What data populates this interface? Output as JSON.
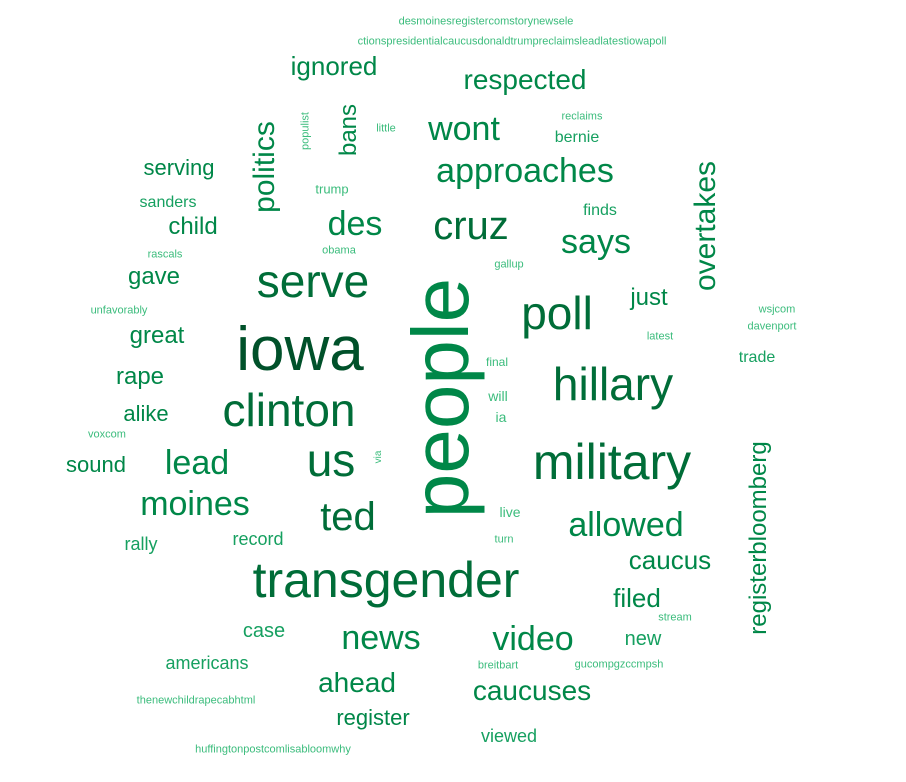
{
  "cloud": {
    "palette": {
      "largest": "#00512a",
      "large": "#006d38",
      "medium": "#008748",
      "small": "#16a060",
      "tiny": "#3bbc7c"
    },
    "words": [
      {
        "text": "people",
        "tier": "medium",
        "vertical": true
      },
      {
        "text": "iowa",
        "tier": "largest"
      },
      {
        "text": "transgender",
        "tier": "large"
      },
      {
        "text": "military",
        "tier": "large"
      },
      {
        "text": "clinton",
        "tier": "large"
      },
      {
        "text": "hillary",
        "tier": "large"
      },
      {
        "text": "poll",
        "tier": "large"
      },
      {
        "text": "us",
        "tier": "large"
      },
      {
        "text": "serve",
        "tier": "large"
      },
      {
        "text": "cruz",
        "tier": "large"
      },
      {
        "text": "ted",
        "tier": "large"
      },
      {
        "text": "moines",
        "tier": "medium"
      },
      {
        "text": "lead",
        "tier": "medium"
      },
      {
        "text": "approaches",
        "tier": "medium"
      },
      {
        "text": "says",
        "tier": "medium"
      },
      {
        "text": "allowed",
        "tier": "medium"
      },
      {
        "text": "video",
        "tier": "medium"
      },
      {
        "text": "news",
        "tier": "medium"
      },
      {
        "text": "des",
        "tier": "medium"
      },
      {
        "text": "wont",
        "tier": "medium"
      },
      {
        "text": "overtakes",
        "tier": "medium",
        "vertical": true
      },
      {
        "text": "politics",
        "tier": "medium",
        "vertical": true
      },
      {
        "text": "caucuses",
        "tier": "medium"
      },
      {
        "text": "ahead",
        "tier": "medium"
      },
      {
        "text": "registerbloomberg",
        "tier": "medium",
        "vertical": true
      },
      {
        "text": "respected",
        "tier": "medium"
      },
      {
        "text": "ignored",
        "tier": "medium"
      },
      {
        "text": "caucus",
        "tier": "medium"
      },
      {
        "text": "filed",
        "tier": "medium"
      },
      {
        "text": "just",
        "tier": "medium"
      },
      {
        "text": "great",
        "tier": "medium"
      },
      {
        "text": "gave",
        "tier": "medium"
      },
      {
        "text": "child",
        "tier": "medium"
      },
      {
        "text": "serving",
        "tier": "medium"
      },
      {
        "text": "rape",
        "tier": "medium"
      },
      {
        "text": "alike",
        "tier": "medium"
      },
      {
        "text": "sound",
        "tier": "medium"
      },
      {
        "text": "bans",
        "tier": "medium",
        "vertical": true
      },
      {
        "text": "register",
        "tier": "medium"
      },
      {
        "text": "case",
        "tier": "small"
      },
      {
        "text": "new",
        "tier": "small"
      },
      {
        "text": "viewed",
        "tier": "small"
      },
      {
        "text": "americans",
        "tier": "small"
      },
      {
        "text": "record",
        "tier": "small"
      },
      {
        "text": "rally",
        "tier": "small"
      },
      {
        "text": "trade",
        "tier": "small"
      },
      {
        "text": "sanders",
        "tier": "small"
      },
      {
        "text": "bernie",
        "tier": "small"
      },
      {
        "text": "finds",
        "tier": "small"
      },
      {
        "text": "trump",
        "tier": "tiny"
      },
      {
        "text": "live",
        "tier": "tiny"
      },
      {
        "text": "will",
        "tier": "tiny"
      },
      {
        "text": "ia",
        "tier": "tiny"
      },
      {
        "text": "final",
        "tier": "tiny"
      },
      {
        "text": "latest",
        "tier": "tiny"
      },
      {
        "text": "gallup",
        "tier": "tiny"
      },
      {
        "text": "obama",
        "tier": "tiny"
      },
      {
        "text": "rascals",
        "tier": "tiny"
      },
      {
        "text": "reclaims",
        "tier": "tiny"
      },
      {
        "text": "little",
        "tier": "tiny"
      },
      {
        "text": "populist",
        "tier": "tiny",
        "vertical": true
      },
      {
        "text": "via",
        "tier": "tiny",
        "vertical": true
      },
      {
        "text": "turn",
        "tier": "tiny"
      },
      {
        "text": "stream",
        "tier": "tiny"
      },
      {
        "text": "breitbart",
        "tier": "tiny"
      },
      {
        "text": "gucompgzccmpsh",
        "tier": "tiny"
      },
      {
        "text": "wsjcom",
        "tier": "tiny"
      },
      {
        "text": "davenport",
        "tier": "tiny"
      },
      {
        "text": "unfavorably",
        "tier": "tiny"
      },
      {
        "text": "voxcom",
        "tier": "tiny"
      },
      {
        "text": "thenewchildrapecabhtml",
        "tier": "tiny"
      },
      {
        "text": "huffingtonpostcomlisabloomwhy",
        "tier": "tiny"
      },
      {
        "text": "desmoinesregistercomstorynewsele",
        "tier": "tiny"
      },
      {
        "text": "ctionspresidentialcaucusdonaldtrumpreclaimsleadlatestiowapoll",
        "tier": "tiny"
      }
    ]
  }
}
